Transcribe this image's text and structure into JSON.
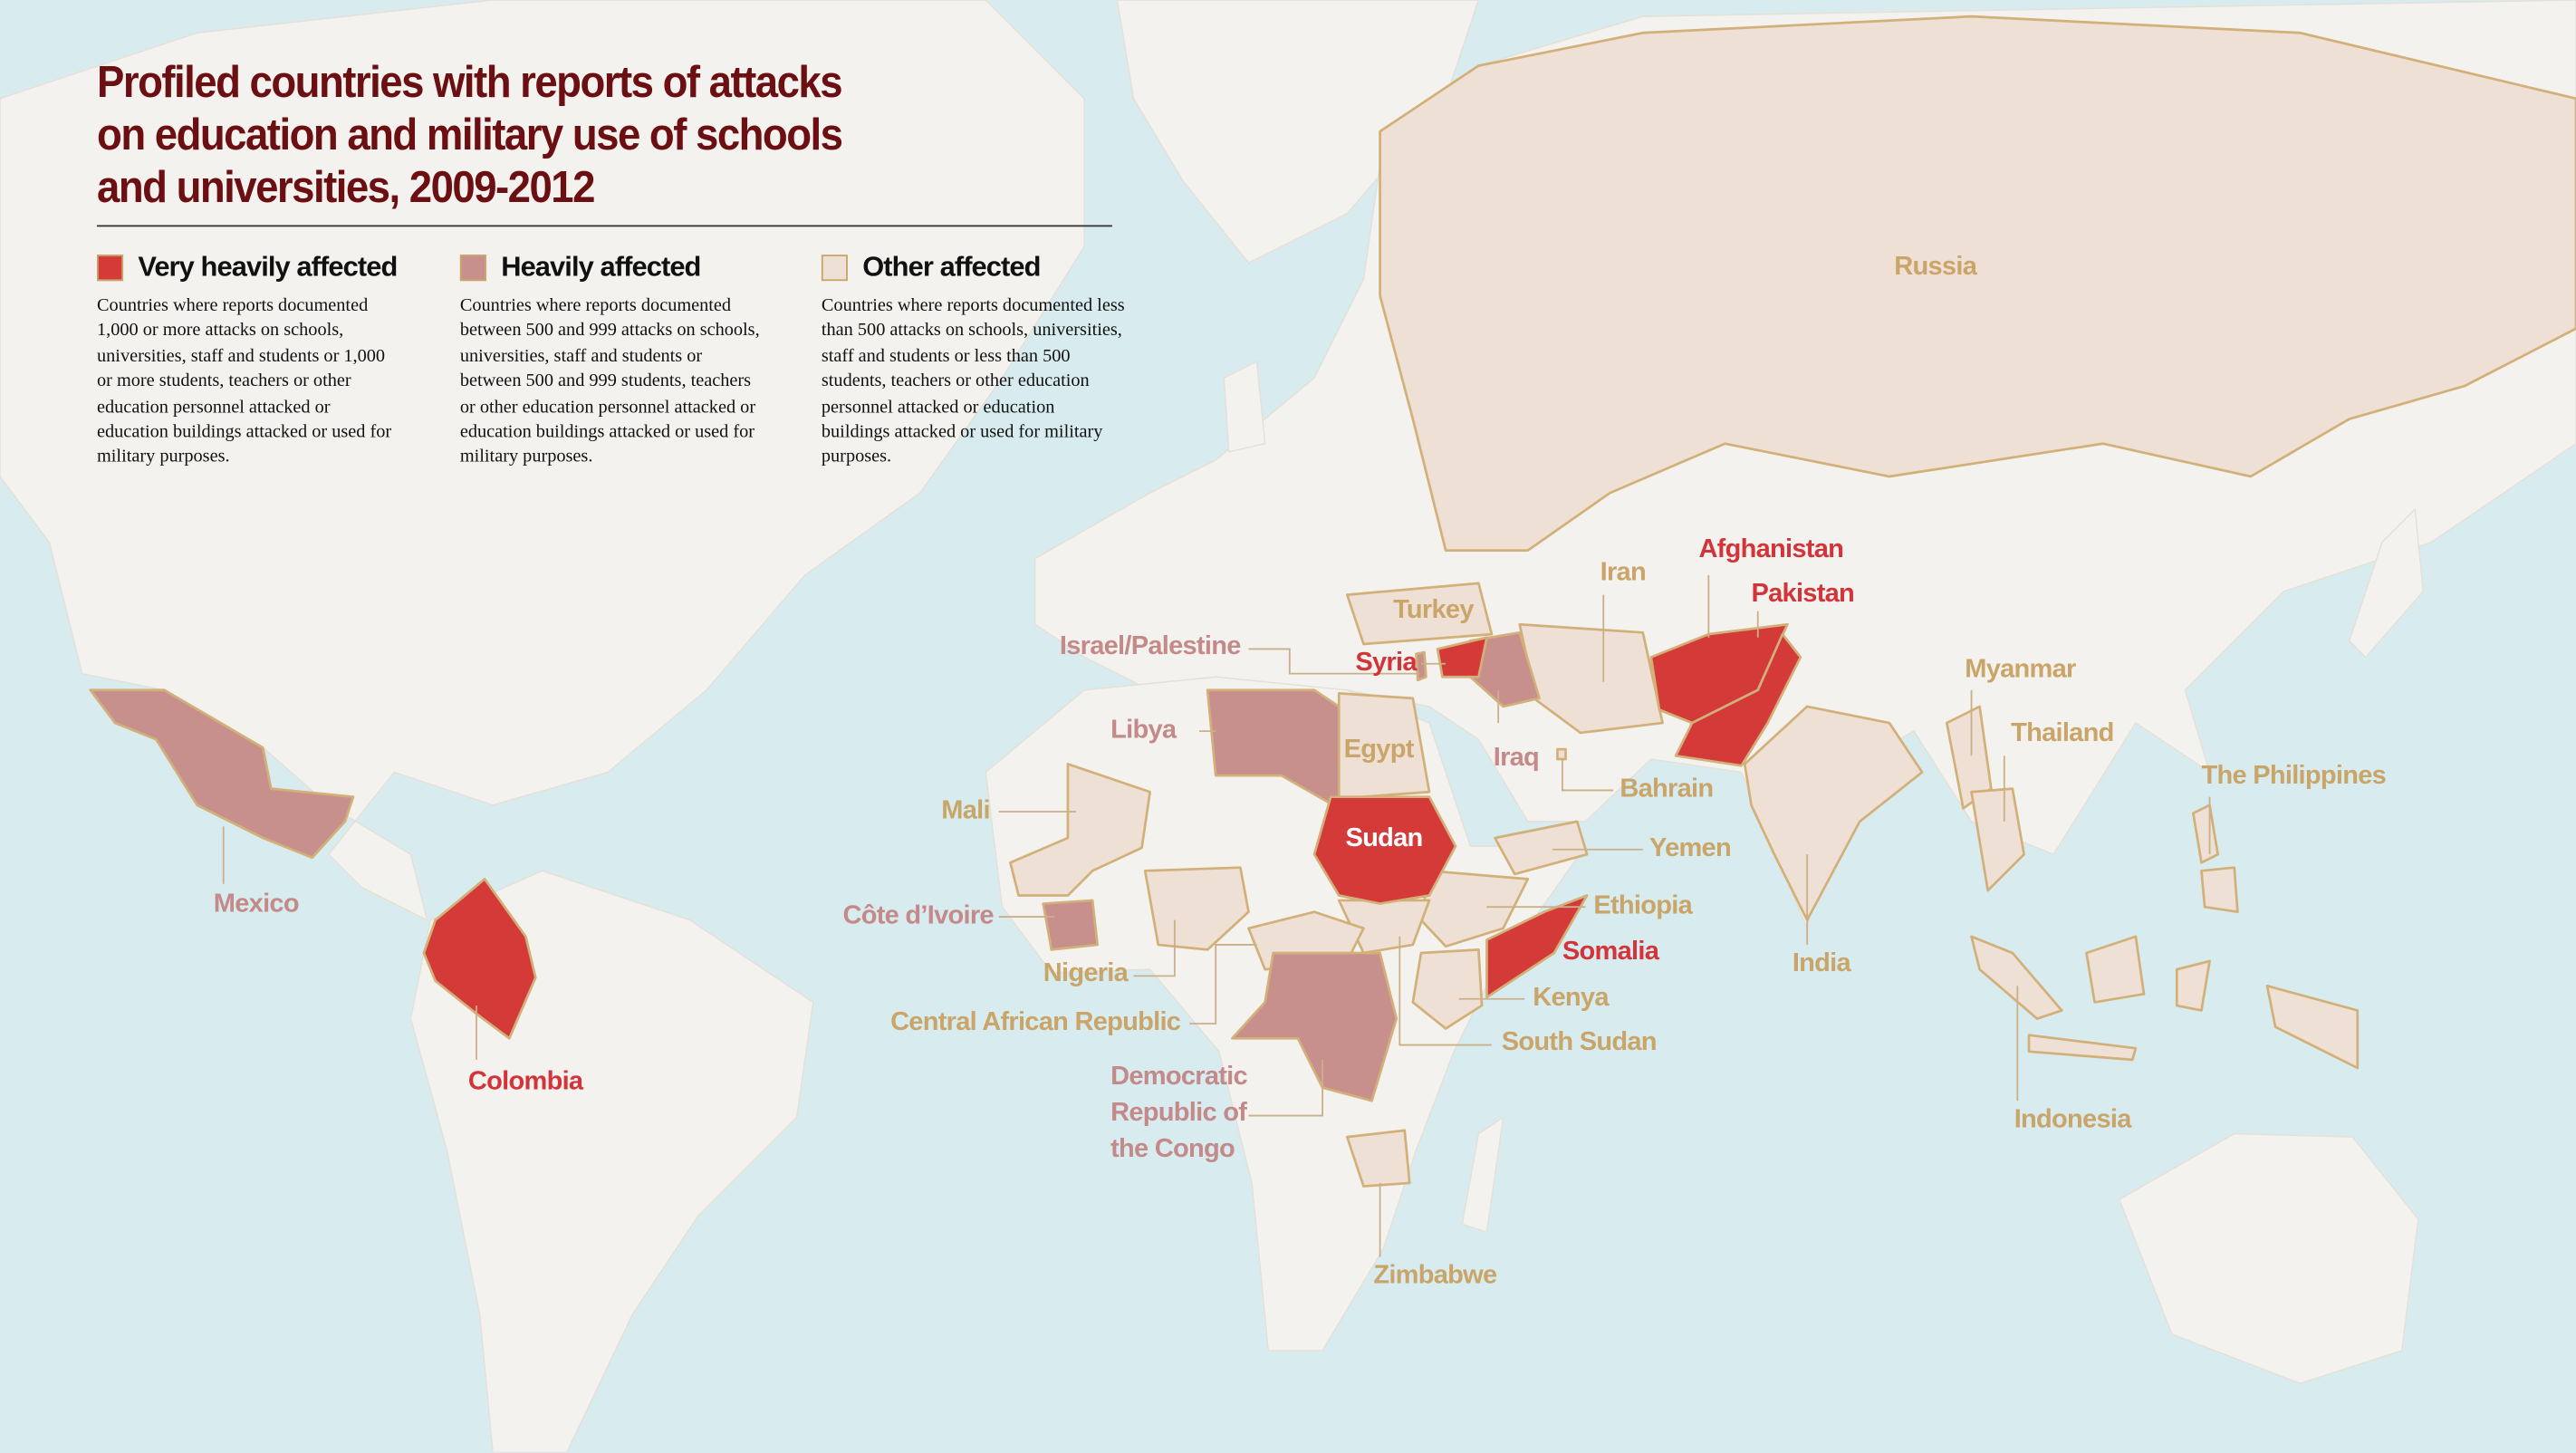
{
  "title_lines": [
    "Profiled countries with reports of attacks",
    "on education and military use of schools",
    "and universities, 2009-2012"
  ],
  "legend": [
    {
      "label": "Very heavily affected",
      "color": "#d43a37",
      "label_color": "#d2343a",
      "description": "Countries where reports documented 1,000 or more attacks on schools, universities, staff and students or 1,000 or more students, teachers or other education personnel attacked or education buildings attacked or used for military purposes.",
      "countries": [
        "Afghanistan",
        "Pakistan",
        "Syria",
        "Sudan",
        "Somalia",
        "Colombia"
      ]
    },
    {
      "label": "Heavily affected",
      "color": "#c8908d",
      "label_color": "#c48a8a",
      "description": "Countries where reports documented between 500 and 999 attacks on schools, universities, staff and students or between 500 and 999 students, teachers or other education personnel attacked or education buildings attacked or used for military purposes.",
      "countries": [
        "Mexico",
        "Israel/Palestine",
        "Libya",
        "Iraq",
        "Côte d’Ivoire",
        "Democratic Republic of the Congo"
      ]
    },
    {
      "label": "Other affected",
      "color": "#efe0d5",
      "label_color": "#c9a56a",
      "description": "Countries where reports documented less than 500 attacks on schools, universities, staff and students or less than 500 students, teachers or other education personnel attacked or education buildings attacked or used for military purposes.",
      "countries": [
        "Russia",
        "Turkey",
        "Iran",
        "Egypt",
        "Bahrain",
        "Yemen",
        "Ethiopia",
        "Kenya",
        "South Sudan",
        "Mali",
        "Nigeria",
        "Central African Republic",
        "Zimbabwe",
        "India",
        "Myanmar",
        "Thailand",
        "The Philippines",
        "Indonesia"
      ]
    }
  ]
}
